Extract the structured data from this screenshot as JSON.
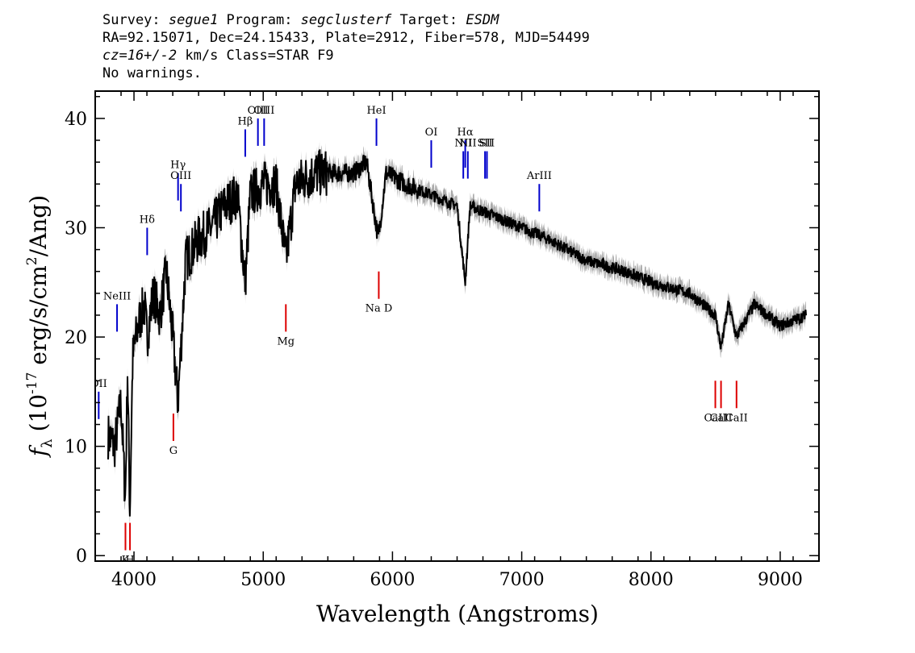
{
  "header": {
    "line1": "Survey: segue1 Program: segclusterf Target: ESDM",
    "line2": "RA=92.15071, Dec=24.15433, Plate=2912, Fiber=578, MJD=54499",
    "line3": "cz=16+/-2 km/s Class=STAR F9",
    "line4": "No warnings."
  },
  "chart_data": {
    "type": "line",
    "xlabel": "Wavelength (Angstroms)",
    "ylabel": "f_λ (10^-17 erg/s/cm^2/Ang)",
    "xlim": [
      3700,
      9300
    ],
    "ylim": [
      -0.5,
      42.5
    ],
    "xticks": [
      4000,
      5000,
      6000,
      7000,
      8000,
      9000
    ],
    "yticks": [
      0,
      10,
      20,
      30,
      40
    ],
    "colors": {
      "spectrum": "#000000",
      "error": "#aaaaaa",
      "emission": "#0000cc",
      "absorption": "#dd0000"
    },
    "series": [
      {
        "x": [
          3800,
          3850,
          3900,
          3933,
          3950,
          3968,
          3990,
          4030,
          4080,
          4101,
          4150,
          4200,
          4250,
          4300,
          4340,
          4400,
          4450,
          4500,
          4600,
          4700,
          4800,
          4861,
          4900,
          5000,
          5100,
          5175,
          5250,
          5400,
          5500,
          5600,
          5700,
          5800,
          5890,
          5950,
          6100,
          6300,
          6500,
          6563,
          6600,
          6800,
          7000,
          7200,
          7500,
          7800,
          8000,
          8300,
          8498,
          8542,
          8600,
          8662,
          8800,
          9000,
          9200
        ],
        "y": [
          11,
          10,
          14,
          5,
          17,
          4,
          18,
          21,
          23,
          20,
          24,
          22,
          26,
          20,
          14,
          27,
          28,
          29,
          30,
          32,
          33,
          25,
          33,
          34,
          34,
          27,
          34,
          35,
          35,
          35,
          35,
          36,
          29,
          35,
          34,
          33,
          32,
          25,
          32,
          31,
          30,
          29,
          27,
          26,
          25,
          24,
          22,
          19,
          23,
          20,
          23,
          21,
          22
        ]
      }
    ],
    "emission_lines": [
      {
        "label": "OII",
        "x": 3727,
        "y": 15
      },
      {
        "label": "NeIII",
        "x": 3869,
        "y": 23
      },
      {
        "label": "Hδ",
        "x": 4102,
        "y": 30
      },
      {
        "label": "Hγ",
        "x": 4341,
        "y": 35
      },
      {
        "label": "OIII",
        "x": 4363,
        "y": 34
      },
      {
        "label": "Hβ",
        "x": 4861,
        "y": 39
      },
      {
        "label": "OIII",
        "x": 4959,
        "y": 40
      },
      {
        "label": "OIII",
        "x": 5007,
        "y": 40
      },
      {
        "label": "HeI",
        "x": 5876,
        "y": 40
      },
      {
        "label": "OI",
        "x": 6300,
        "y": 38
      },
      {
        "label": "NII",
        "x": 6548,
        "y": 37
      },
      {
        "label": "Hα",
        "x": 6563,
        "y": 38
      },
      {
        "label": "NII",
        "x": 6583,
        "y": 37
      },
      {
        "label": "SII",
        "x": 6716,
        "y": 37
      },
      {
        "label": "SII",
        "x": 6731,
        "y": 37
      },
      {
        "label": "ArIII",
        "x": 7136,
        "y": 34
      }
    ],
    "absorption_lines": [
      {
        "label": "K",
        "x": 3934,
        "y": 3
      },
      {
        "label": "H",
        "x": 3969,
        "y": 3
      },
      {
        "label": "G",
        "x": 4305,
        "y": 13
      },
      {
        "label": "Mg",
        "x": 5175,
        "y": 23
      },
      {
        "label": "Na D",
        "x": 5894,
        "y": 26
      },
      {
        "label": "CaII",
        "x": 8498,
        "y": 16
      },
      {
        "label": "CaII",
        "x": 8542,
        "y": 16
      },
      {
        "label": "CaII",
        "x": 8662,
        "y": 16
      }
    ]
  }
}
